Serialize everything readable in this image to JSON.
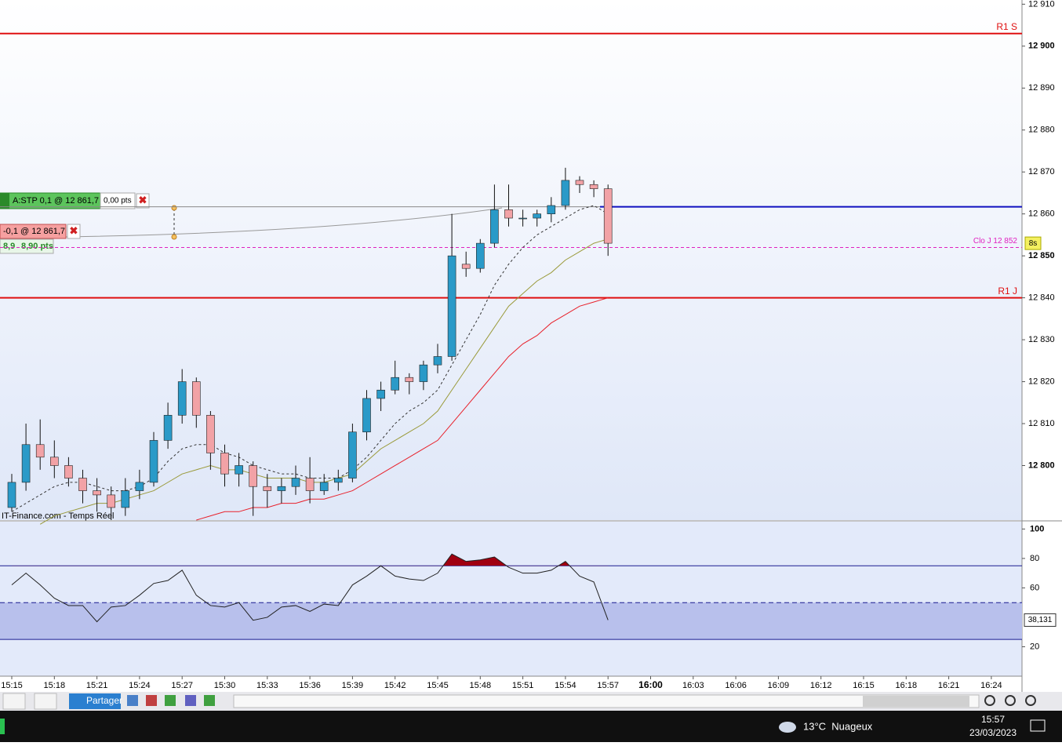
{
  "chart_data": [
    {
      "type": "candlestick",
      "x": [
        "15:15",
        "15:16",
        "15:17",
        "15:18",
        "15:19",
        "15:20",
        "15:21",
        "15:22",
        "15:23",
        "15:24",
        "15:25",
        "15:26",
        "15:27",
        "15:28",
        "15:29",
        "15:30",
        "15:31",
        "15:32",
        "15:33",
        "15:34",
        "15:35",
        "15:36",
        "15:37",
        "15:38",
        "15:39",
        "15:40",
        "15:41",
        "15:42",
        "15:43",
        "15:44",
        "15:45",
        "15:46",
        "15:47",
        "15:48",
        "15:49",
        "15:50",
        "15:51",
        "15:52",
        "15:53",
        "15:54",
        "15:55",
        "15:56",
        "15:57"
      ],
      "open": [
        12790,
        12796,
        12805,
        12802,
        12800,
        12797,
        12794,
        12793,
        12790,
        12794,
        12796,
        12806,
        12812,
        12820,
        12812,
        12803,
        12798,
        12800,
        12795,
        12794,
        12795,
        12797,
        12794,
        12796,
        12797,
        12808,
        12816,
        12818,
        12821,
        12820,
        12824,
        12826,
        12848,
        12847,
        12853,
        12861,
        12859,
        12859,
        12860,
        12862,
        12868,
        12867,
        12866
      ],
      "high": [
        12798,
        12810,
        12811,
        12806,
        12802,
        12799,
        12797,
        12795,
        12797,
        12799,
        12808,
        12815,
        12823,
        12821,
        12813,
        12805,
        12803,
        12801,
        12798,
        12797,
        12800,
        12802,
        12798,
        12799,
        12810,
        12818,
        12820,
        12825,
        12822,
        12825,
        12829,
        12860,
        12851,
        12854,
        12867,
        12867,
        12861,
        12861,
        12864,
        12871,
        12869,
        12868,
        12867
      ],
      "low": [
        12789,
        12794,
        12799,
        12797,
        12795,
        12791,
        12789,
        12787,
        12788,
        12792,
        12795,
        12804,
        12810,
        12809,
        12799,
        12795,
        12795,
        12788,
        12790,
        12791,
        12793,
        12791,
        12793,
        12794,
        12796,
        12806,
        12813,
        12817,
        12817,
        12818,
        12822,
        12825,
        12845,
        12846,
        12852,
        12857,
        12857,
        12857,
        12858,
        12861,
        12865,
        12864,
        12850
      ],
      "close": [
        12796,
        12805,
        12802,
        12800,
        12797,
        12794,
        12793,
        12790,
        12794,
        12796,
        12806,
        12812,
        12820,
        12812,
        12803,
        12798,
        12800,
        12795,
        12794,
        12795,
        12797,
        12794,
        12796,
        12797,
        12808,
        12816,
        12818,
        12821,
        12820,
        12824,
        12826,
        12850,
        12847,
        12853,
        12861,
        12859,
        12859,
        12860,
        12862,
        12868,
        12867,
        12866,
        12853
      ],
      "up_color": "#2a9ac8",
      "down_color": "#f2a2a6",
      "series": [
        {
          "color": "#333333",
          "values": [
            12789,
            12791,
            12793,
            12795,
            12796,
            12796,
            12795,
            12794,
            12794,
            12795,
            12797,
            12801,
            12804,
            12805,
            12805,
            12803,
            12802,
            12800,
            12799,
            12798,
            12798,
            12797,
            12797,
            12797,
            12799,
            12802,
            12806,
            12810,
            12813,
            12815,
            12818,
            12824,
            12830,
            12836,
            12843,
            12848,
            12852,
            12855,
            12857,
            12859,
            12861,
            12862,
            12860
          ]
        },
        {
          "color": "#9a9a3a",
          "values": [
            null,
            null,
            12786,
            12788,
            12789,
            12790,
            12791,
            12791,
            12792,
            12793,
            12794,
            12796,
            12798,
            12799,
            12800,
            12799,
            12799,
            12798,
            12797,
            12797,
            12797,
            12796,
            12796,
            12797,
            12798,
            12801,
            12804,
            12806,
            12808,
            12810,
            12813,
            12818,
            12823,
            12828,
            12833,
            12838,
            12841,
            12844,
            12846,
            12849,
            12851,
            12853,
            12854
          ]
        },
        {
          "color": "#e8202a",
          "values": [
            null,
            null,
            null,
            null,
            null,
            null,
            null,
            null,
            null,
            null,
            null,
            null,
            null,
            12787,
            12788,
            12789,
            12789,
            12790,
            12790,
            12791,
            12791,
            12792,
            12792,
            12793,
            12794,
            12796,
            12798,
            12800,
            12802,
            12804,
            12806,
            12810,
            12814,
            12818,
            12822,
            12826,
            12829,
            12831,
            12834,
            12836,
            12838,
            12839,
            12840
          ]
        }
      ],
      "levels": [
        {
          "label": "R1 S",
          "value": 12903,
          "color": "#e01010"
        },
        {
          "label": "R1 J",
          "value": 12840,
          "color": "#e01010"
        },
        {
          "label": "Clo J 12 852",
          "value": 12852,
          "color": "#e020c0"
        }
      ],
      "order_level": 12861.7,
      "ylim": [
        12787,
        12911
      ],
      "yticks": [
        {
          "value": 12910,
          "label": "12 910"
        },
        {
          "value": 12900,
          "label": "12 900"
        },
        {
          "value": 12890,
          "label": "12 890"
        },
        {
          "value": 12880,
          "label": "12 880"
        },
        {
          "value": 12870,
          "label": "12 870"
        },
        {
          "value": 12860,
          "label": "12 860"
        },
        {
          "value": 12850,
          "label": "12 850"
        },
        {
          "value": 12840,
          "label": "12 840"
        },
        {
          "value": 12830,
          "label": "12 830"
        },
        {
          "value": 12820,
          "label": "12 820"
        },
        {
          "value": 12810,
          "label": "12 810"
        },
        {
          "value": 12800,
          "label": "12 800"
        }
      ],
      "source": "IT-Finance.com - Temps Réel",
      "countdown": "8s"
    },
    {
      "type": "line",
      "x": [
        "15:15",
        "15:16",
        "15:17",
        "15:18",
        "15:19",
        "15:20",
        "15:21",
        "15:22",
        "15:23",
        "15:24",
        "15:25",
        "15:26",
        "15:27",
        "15:28",
        "15:29",
        "15:30",
        "15:31",
        "15:32",
        "15:33",
        "15:34",
        "15:35",
        "15:36",
        "15:37",
        "15:38",
        "15:39",
        "15:40",
        "15:41",
        "15:42",
        "15:43",
        "15:44",
        "15:45",
        "15:46",
        "15:47",
        "15:48",
        "15:49",
        "15:50",
        "15:51",
        "15:52",
        "15:53",
        "15:54",
        "15:55",
        "15:56",
        "15:57"
      ],
      "series": [
        {
          "color": "#222222",
          "values": [
            62,
            70,
            62,
            53,
            48,
            48,
            37,
            47,
            48,
            55,
            63,
            65,
            72,
            55,
            48,
            47,
            50,
            38,
            40,
            47,
            48,
            44,
            49,
            48,
            62,
            68,
            75,
            68,
            66,
            65,
            70,
            83,
            78,
            79,
            81,
            74,
            70,
            70,
            72,
            78,
            68,
            64,
            38.131
          ],
          "value_labels": [
            null,
            null,
            null,
            null,
            null,
            null,
            null,
            null,
            null,
            null,
            null,
            null,
            null,
            null,
            null,
            null,
            null,
            null,
            null,
            null,
            null,
            null,
            null,
            null,
            null,
            null,
            null,
            null,
            null,
            null,
            null,
            null,
            null,
            null,
            null,
            null,
            null,
            null,
            null,
            null,
            null,
            null,
            "38,131"
          ]
        }
      ],
      "overbought": 75,
      "oversold": 25,
      "midline": 50,
      "fill_color": "#a00010",
      "ylim": [
        0,
        105
      ],
      "yticks": [
        100,
        80,
        60,
        20
      ],
      "xtick_labels": [
        "15:15",
        "15:18",
        "15:21",
        "15:24",
        "15:27",
        "15:30",
        "15:33",
        "15:36",
        "15:39",
        "15:42",
        "15:45",
        "15:48",
        "15:51",
        "15:54",
        "15:57",
        "16:00",
        "16:03",
        "16:06",
        "16:09",
        "16:12",
        "16:15",
        "16:18",
        "16:21",
        "16:24"
      ]
    }
  ],
  "ui": {
    "order_tag": "A:STP 0,1 @ 12 861,7",
    "order_pts": "0,00 pts",
    "position_tag": "-0,1 @ 12 861,7",
    "pnl": "8,9",
    "pnl_pts": "8,90 pts",
    "share": "Partager",
    "weather": "13°C  Nuageux",
    "clock": "15:57",
    "date": "23/03/2023"
  }
}
